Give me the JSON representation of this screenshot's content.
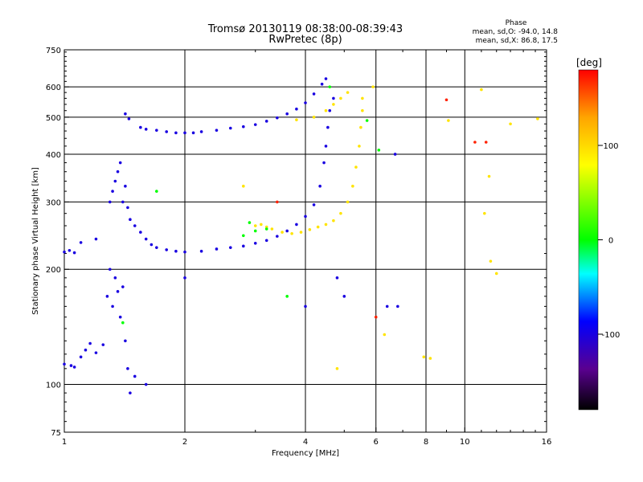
{
  "chart_data": {
    "type": "scatter",
    "title": "Tromsø 20130119 08:38:00-08:39:43",
    "subtitle": "RwPretec (8p)",
    "xlabel": "Frequency [MHz]",
    "ylabel": "Stationary phase Virtual Height [km]",
    "x_scale": "log",
    "y_scale": "log",
    "xlim": [
      1,
      16
    ],
    "ylim": [
      75,
      750
    ],
    "x_ticks": [
      1,
      2,
      4,
      6,
      8,
      10,
      16
    ],
    "x_tick_labels": [
      "1",
      "2",
      "4",
      "6",
      "8",
      "10",
      "16"
    ],
    "y_ticks": [
      75,
      100,
      200,
      300,
      400,
      500,
      600,
      750
    ],
    "y_tick_labels": [
      "75",
      "100",
      "200",
      "300",
      "400",
      "500",
      "600",
      "750"
    ],
    "x_gridlines": [
      2,
      4,
      6,
      8,
      10
    ],
    "y_gridlines": [
      100,
      200,
      300,
      400,
      500,
      600
    ],
    "grid": true,
    "stats": {
      "heading": "Phase",
      "line_o": "mean, sd,O: -94.0, 14.8",
      "line_x": "mean, sd,X: 86.8, 17.5"
    },
    "colorbar": {
      "label": "[deg]",
      "range": [
        -180,
        180
      ],
      "ticks": [
        100,
        0,
        -100
      ],
      "tick_labels": [
        "100",
        "0",
        "-100"
      ],
      "colors": [
        "#ff0000",
        "#ffa500",
        "#ffff00",
        "#00ff00",
        "#00ffff",
        "#0000ff",
        "#5a0090",
        "#000000"
      ]
    },
    "series": [
      {
        "mode": "O",
        "phase": -100,
        "points": [
          [
            1.0,
            113
          ],
          [
            1.04,
            112
          ],
          [
            1.06,
            111
          ],
          [
            1.1,
            118
          ],
          [
            1.13,
            123
          ],
          [
            1.16,
            128
          ],
          [
            1.2,
            121
          ],
          [
            1.25,
            127
          ],
          [
            1.0,
            222
          ],
          [
            1.03,
            224
          ],
          [
            1.06,
            221
          ],
          [
            1.1,
            235
          ],
          [
            1.2,
            240
          ],
          [
            1.28,
            170
          ],
          [
            1.3,
            200
          ],
          [
            1.32,
            160
          ],
          [
            1.34,
            190
          ],
          [
            1.36,
            175
          ],
          [
            1.38,
            150
          ],
          [
            1.4,
            180
          ],
          [
            1.42,
            130
          ],
          [
            1.44,
            110
          ],
          [
            1.46,
            95
          ],
          [
            1.3,
            300
          ],
          [
            1.32,
            320
          ],
          [
            1.34,
            340
          ],
          [
            1.36,
            360
          ],
          [
            1.38,
            380
          ],
          [
            1.4,
            300
          ],
          [
            1.42,
            330
          ],
          [
            1.44,
            290
          ],
          [
            1.46,
            270
          ],
          [
            1.5,
            260
          ],
          [
            1.55,
            250
          ],
          [
            1.6,
            240
          ],
          [
            1.65,
            232
          ],
          [
            1.7,
            228
          ],
          [
            1.8,
            225
          ],
          [
            1.9,
            223
          ],
          [
            2.0,
            222
          ],
          [
            2.2,
            223
          ],
          [
            2.4,
            226
          ],
          [
            2.6,
            228
          ],
          [
            2.8,
            230
          ],
          [
            3.0,
            234
          ],
          [
            3.2,
            238
          ],
          [
            3.4,
            244
          ],
          [
            3.6,
            252
          ],
          [
            3.8,
            262
          ],
          [
            4.0,
            275
          ],
          [
            4.2,
            295
          ],
          [
            4.35,
            330
          ],
          [
            4.45,
            380
          ],
          [
            4.5,
            420
          ],
          [
            4.55,
            470
          ],
          [
            4.6,
            520
          ],
          [
            4.7,
            560
          ],
          [
            1.42,
            510
          ],
          [
            1.45,
            495
          ],
          [
            1.55,
            470
          ],
          [
            1.6,
            465
          ],
          [
            1.7,
            462
          ],
          [
            1.8,
            458
          ],
          [
            1.9,
            455
          ],
          [
            2.0,
            455
          ],
          [
            2.1,
            455
          ],
          [
            2.2,
            458
          ],
          [
            2.4,
            462
          ],
          [
            2.6,
            468
          ],
          [
            2.8,
            472
          ],
          [
            3.0,
            478
          ],
          [
            3.2,
            488
          ],
          [
            3.4,
            498
          ],
          [
            3.6,
            510
          ],
          [
            3.8,
            525
          ],
          [
            4.0,
            545
          ],
          [
            4.2,
            575
          ],
          [
            4.4,
            610
          ],
          [
            4.5,
            630
          ],
          [
            4.0,
            160
          ],
          [
            4.8,
            190
          ],
          [
            5.0,
            170
          ],
          [
            6.8,
            160
          ],
          [
            6.4,
            160
          ],
          [
            6.7,
            400
          ],
          [
            2.0,
            190
          ],
          [
            1.5,
            105
          ],
          [
            1.6,
            100
          ]
        ]
      },
      {
        "mode": "X",
        "phase": 95,
        "points": [
          [
            3.1,
            262
          ],
          [
            3.2,
            258
          ],
          [
            3.3,
            255
          ],
          [
            3.5,
            250
          ],
          [
            3.7,
            248
          ],
          [
            3.9,
            250
          ],
          [
            4.1,
            254
          ],
          [
            4.3,
            258
          ],
          [
            4.5,
            262
          ],
          [
            4.7,
            268
          ],
          [
            4.9,
            280
          ],
          [
            5.1,
            300
          ],
          [
            5.25,
            330
          ],
          [
            5.35,
            370
          ],
          [
            5.45,
            420
          ],
          [
            5.5,
            470
          ],
          [
            5.55,
            520
          ],
          [
            5.55,
            560
          ],
          [
            4.5,
            520
          ],
          [
            4.7,
            540
          ],
          [
            4.9,
            560
          ],
          [
            5.1,
            580
          ],
          [
            4.2,
            500
          ],
          [
            3.8,
            492
          ],
          [
            5.9,
            600
          ],
          [
            7.9,
            118
          ],
          [
            8.2,
            117
          ],
          [
            9.1,
            490
          ],
          [
            11.0,
            590
          ],
          [
            11.5,
            350
          ],
          [
            11.2,
            280
          ],
          [
            13.0,
            480
          ],
          [
            15.2,
            495
          ],
          [
            11.6,
            210
          ],
          [
            12.0,
            195
          ],
          [
            2.8,
            330
          ],
          [
            3.0,
            260
          ],
          [
            6.3,
            135
          ],
          [
            4.8,
            110
          ]
        ]
      },
      {
        "mode": "other",
        "phase": 0,
        "points": [
          [
            3.2,
            255
          ],
          [
            2.9,
            265
          ],
          [
            3.0,
            252
          ],
          [
            5.7,
            490
          ],
          [
            6.1,
            410
          ],
          [
            4.6,
            600
          ],
          [
            1.7,
            320
          ],
          [
            2.8,
            245
          ],
          [
            3.6,
            170
          ],
          [
            1.4,
            145
          ]
        ]
      },
      {
        "mode": "other",
        "phase": 170,
        "points": [
          [
            3.4,
            300
          ],
          [
            9.0,
            555
          ],
          [
            10.6,
            430
          ],
          [
            11.3,
            430
          ],
          [
            6.0,
            150
          ]
        ]
      }
    ]
  }
}
